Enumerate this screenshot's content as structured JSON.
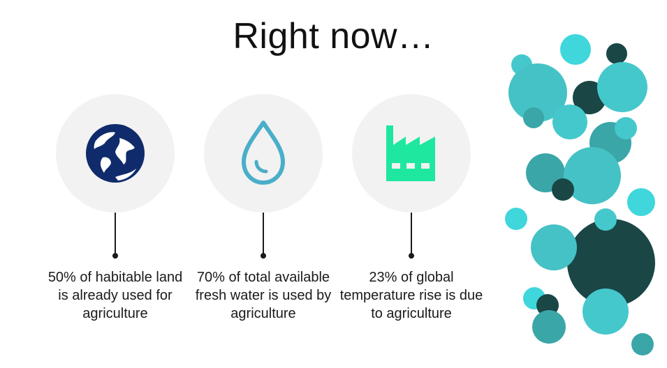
{
  "title": "Right now…",
  "stats": [
    {
      "icon": "globe-icon",
      "caption": "50% of habitable land is already used for agriculture",
      "icon_color": "#0f2b6b"
    },
    {
      "icon": "water-drop-icon",
      "caption": "70% of total available fresh water is used by agriculture",
      "icon_color": "#4aaec9"
    },
    {
      "icon": "factory-icon",
      "caption": "23% of global temperature rise is due to agriculture",
      "icon_color": "#1ee8a0"
    }
  ],
  "colors": {
    "circle_bg": "#f2f2f2",
    "teal_light": "#45c8cc",
    "teal_mid": "#3aa6a8",
    "teal_bright": "#3fd6dc",
    "teal_dark": "#1a4646"
  }
}
